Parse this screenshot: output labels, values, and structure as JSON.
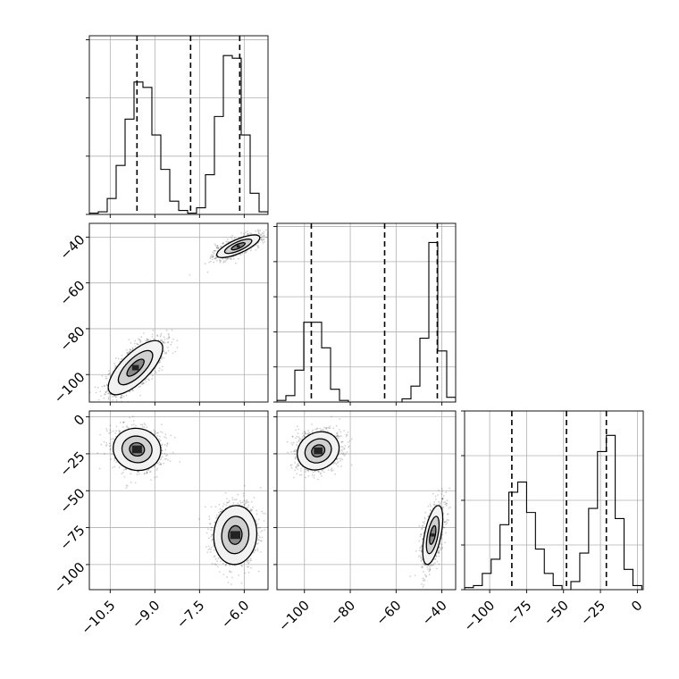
{
  "chart_data": {
    "type": "corner",
    "parameters": [
      {
        "id": "p0",
        "range": [
          -11.2,
          -5.2
        ],
        "ticks": [
          -10.5,
          -9.0,
          -7.5,
          -6.0
        ],
        "tick_labels": [
          "−10.5",
          "−9.0",
          "−7.5",
          "−6.0"
        ]
      },
      {
        "id": "p1",
        "range": [
          -112,
          -34
        ],
        "ticks": [
          -100,
          -80,
          -60,
          -40
        ],
        "tick_labels": [
          "−100",
          "−80",
          "−60",
          "−40"
        ]
      },
      {
        "id": "p2",
        "range": [
          -117,
          4
        ],
        "ticks": [
          -100,
          -75,
          -50,
          -25,
          0
        ],
        "tick_labels": [
          "−100",
          "−75",
          "−50",
          "−25",
          "0"
        ]
      }
    ],
    "quantiles": [
      [
        -9.6,
        -7.8,
        -6.15
      ],
      [
        -97,
        -65,
        -42
      ],
      [
        -85,
        -48,
        -21
      ]
    ],
    "histograms": [
      {
        "edges": [
          -11.2,
          -10.9,
          -10.6,
          -10.3,
          -10.0,
          -9.7,
          -9.4,
          -9.1,
          -8.8,
          -8.5,
          -8.2,
          -7.9,
          -7.6,
          -7.3,
          -7.0,
          -6.7,
          -6.4,
          -6.1,
          -5.8,
          -5.5,
          -5.2
        ],
        "counts": [
          1,
          2,
          12,
          37,
          72,
          100,
          96,
          60,
          34,
          10,
          3,
          1,
          5,
          30,
          74,
          120,
          118,
          60,
          16,
          2
        ]
      },
      {
        "edges": [
          -112,
          -108.1,
          -104.2,
          -100.3,
          -96.4,
          -92.5,
          -88.6,
          -84.7,
          -80.8,
          -76.9,
          -73,
          -69.1,
          -65.2,
          -61.3,
          -57.4,
          -53.5,
          -49.6,
          -45.7,
          -41.8,
          -37.9,
          -34
        ],
        "counts": [
          1,
          4,
          20,
          50,
          50,
          34,
          8,
          1,
          0,
          0,
          0,
          0,
          0,
          0,
          2,
          10,
          40,
          100,
          32,
          3
        ]
      },
      {
        "edges": [
          -117,
          -111,
          -105,
          -99,
          -93,
          -87,
          -81,
          -75,
          -69,
          -63,
          -57,
          -51,
          -45,
          -39,
          -33,
          -27,
          -21,
          -15,
          -9,
          -3,
          3
        ],
        "counts": [
          1,
          2,
          8,
          15,
          32,
          48,
          53,
          38,
          20,
          8,
          2,
          0,
          4,
          18,
          40,
          68,
          76,
          35,
          10,
          2
        ]
      }
    ],
    "hist_ymax": [
      135,
      112,
      88
    ],
    "hist_yticks": [
      [
        0,
        44,
        88,
        132
      ],
      [
        0,
        22,
        44,
        66,
        88,
        110
      ],
      [
        0,
        22,
        44,
        66,
        88
      ]
    ],
    "joint_modes": [
      {
        "x": 0,
        "y": 1,
        "modes": [
          {
            "cx": -6.2,
            "cy": -44,
            "sx": 0.38,
            "sy": 2.6,
            "rho": 0.75
          },
          {
            "cx": -9.65,
            "cy": -97,
            "sx": 0.48,
            "sy": 6.2,
            "rho": 0.72
          }
        ]
      },
      {
        "x": 0,
        "y": 2,
        "modes": [
          {
            "cx": -9.6,
            "cy": -22,
            "sx": 0.42,
            "sy": 7.5,
            "rho": -0.05
          },
          {
            "cx": -6.3,
            "cy": -80,
            "sx": 0.38,
            "sy": 10.5,
            "rho": 0.05
          }
        ]
      },
      {
        "x": 1,
        "y": 2,
        "modes": [
          {
            "cx": -94,
            "cy": -23,
            "sx": 4.8,
            "sy": 6.8,
            "rho": 0.15
          },
          {
            "cx": -44,
            "cy": -80,
            "sx": 2.3,
            "sy": 10.5,
            "rho": 0.55
          }
        ]
      }
    ],
    "contour_levels_sigma": [
      0.6,
      1.2,
      1.9
    ],
    "grid": true,
    "title": "",
    "xlabel": "",
    "ylabel": ""
  }
}
